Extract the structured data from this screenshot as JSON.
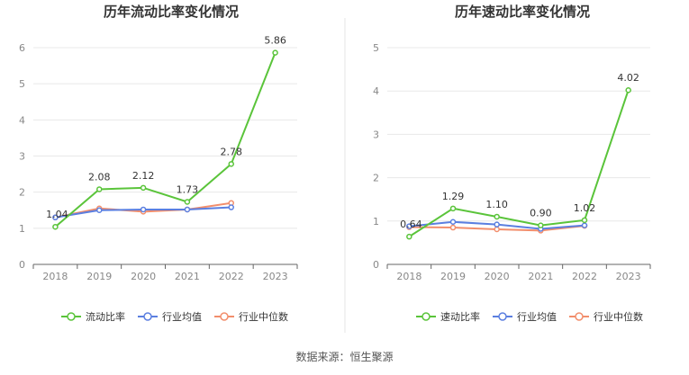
{
  "colors": {
    "primary": "#5ac43a",
    "industry_avg": "#5b7fe0",
    "industry_median": "#f28e6c",
    "grid": "#e8e8e8",
    "axis": "#666666",
    "tick_text": "#888888",
    "title": "#333333",
    "divider": "#e5e5e5"
  },
  "footer": {
    "source": "数据来源：恒生聚源"
  },
  "chart_data": [
    {
      "type": "line",
      "title": "历年流动比率变化情况",
      "categories": [
        "2018",
        "2019",
        "2020",
        "2021",
        "2022",
        "2023"
      ],
      "ylim": [
        0,
        6
      ],
      "yticks": [
        0,
        1,
        2,
        3,
        4,
        5,
        6
      ],
      "series": [
        {
          "name": "流动比率",
          "values": [
            1.04,
            2.08,
            2.12,
            1.73,
            2.78,
            5.86
          ],
          "labels": [
            "1.04",
            "2.08",
            "2.12",
            "1.73",
            "2.78",
            "5.86"
          ]
        },
        {
          "name": "行业均值",
          "values": [
            1.3,
            1.5,
            1.52,
            1.52,
            1.58,
            null
          ]
        },
        {
          "name": "行业中位数",
          "values": [
            1.3,
            1.55,
            1.46,
            1.52,
            1.7,
            null
          ]
        }
      ],
      "legend": "bottom"
    },
    {
      "type": "line",
      "title": "历年速动比率变化情况",
      "categories": [
        "2018",
        "2019",
        "2020",
        "2021",
        "2022",
        "2023"
      ],
      "ylim": [
        0,
        5
      ],
      "yticks": [
        0,
        1,
        2,
        3,
        4,
        5
      ],
      "series": [
        {
          "name": "速动比率",
          "values": [
            0.64,
            1.29,
            1.1,
            0.9,
            1.02,
            4.02
          ],
          "labels": [
            "0.64",
            "1.29",
            "1.10",
            "0.90",
            "1.02",
            "4.02"
          ]
        },
        {
          "name": "行业均值",
          "values": [
            0.88,
            0.98,
            0.92,
            0.82,
            0.9,
            null
          ]
        },
        {
          "name": "行业中位数",
          "values": [
            0.86,
            0.85,
            0.81,
            0.78,
            0.89,
            null
          ]
        }
      ],
      "legend": "bottom"
    }
  ]
}
